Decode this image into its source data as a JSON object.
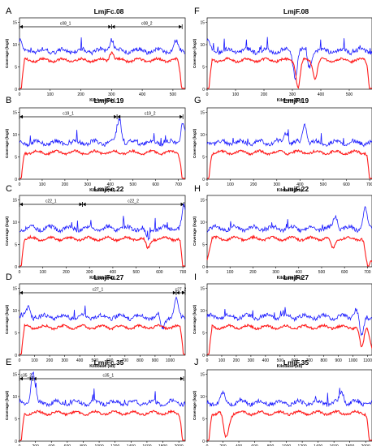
{
  "colors": {
    "coverage_total": "#1a1aff",
    "coverage_unique": "#ff1a1a"
  },
  "chart_data": [
    {
      "type": "line",
      "panel_letter": "A",
      "title": "LmjFc.08",
      "xlabel": "Kilobase (kb)",
      "ylabel": "Coverage (log2)",
      "xlim": [
        0,
        540
      ],
      "xticks": [
        0,
        100,
        200,
        300,
        400,
        500
      ],
      "ylim": [
        0,
        16
      ],
      "yticks": [
        0,
        5,
        10,
        15
      ],
      "contigs": [
        {
          "label": "c08_1",
          "start": 0,
          "end": 300
        },
        {
          "label": "c08_2",
          "start": 300,
          "end": 530
        }
      ],
      "series": [
        {
          "color": "blue",
          "baseline": 8.6,
          "features": [
            {
              "x": 300,
              "y": 11.5
            },
            {
              "x": 510,
              "y": 10.5
            },
            {
              "x": 0,
              "y": 11.0
            }
          ]
        },
        {
          "color": "red",
          "baseline": 6.5,
          "features": [
            {
              "x": 0,
              "y": 1.5
            },
            {
              "x": 300,
              "y": 8.5
            },
            {
              "x": 530,
              "y": 1.5
            }
          ]
        }
      ]
    },
    {
      "type": "line",
      "panel_letter": "F",
      "title": "LmjF.08",
      "xlabel": "Kilobase (kb)",
      "ylabel": "Coverage (log2)",
      "xlim": [
        0,
        580
      ],
      "xticks": [
        0,
        100,
        200,
        300,
        400,
        500
      ],
      "ylim": [
        0,
        16
      ],
      "yticks": [
        0,
        5,
        10,
        15
      ],
      "series": [
        {
          "color": "blue",
          "baseline": 8.6,
          "features": [
            {
              "x": 310,
              "y": 3.0
            },
            {
              "x": 360,
              "y": 5.0
            },
            {
              "x": 0,
              "y": 11.0
            }
          ]
        },
        {
          "color": "red",
          "baseline": 6.5,
          "features": [
            {
              "x": 320,
              "y": 0.5
            },
            {
              "x": 380,
              "y": 2.5
            },
            {
              "x": 0,
              "y": 1.5
            },
            {
              "x": 575,
              "y": 1.5
            }
          ]
        }
      ]
    },
    {
      "type": "line",
      "panel_letter": "B",
      "title": "LmjFc.19",
      "xlabel": "Kilobase (kb)",
      "ylabel": "Coverage (log2)",
      "xlim": [
        0,
        730
      ],
      "xticks": [
        0,
        100,
        200,
        300,
        400,
        500,
        600,
        700
      ],
      "ylim": [
        0,
        16
      ],
      "yticks": [
        0,
        5,
        10,
        15
      ],
      "contigs": [
        {
          "label": "c19_1",
          "start": 0,
          "end": 430
        },
        {
          "label": "c19_2",
          "start": 430,
          "end": 720
        }
      ],
      "series": [
        {
          "color": "blue",
          "baseline": 8.2,
          "features": [
            {
              "x": 440,
              "y": 13.5
            },
            {
              "x": 720,
              "y": 13.0
            }
          ]
        },
        {
          "color": "red",
          "baseline": 6.0,
          "features": [
            {
              "x": 0,
              "y": 1.5
            },
            {
              "x": 720,
              "y": 1.5
            }
          ]
        }
      ]
    },
    {
      "type": "line",
      "panel_letter": "G",
      "title": "LmjF.19",
      "xlabel": "Kilobase (kb)",
      "ylabel": "Coverage (log2)",
      "xlim": [
        0,
        710
      ],
      "xticks": [
        0,
        100,
        200,
        300,
        400,
        500,
        600,
        700
      ],
      "ylim": [
        0,
        16
      ],
      "yticks": [
        0,
        5,
        10,
        15
      ],
      "series": [
        {
          "color": "blue",
          "baseline": 8.2,
          "features": [
            {
              "x": 340,
              "y": 10.5
            },
            {
              "x": 420,
              "y": 12.5
            }
          ]
        },
        {
          "color": "red",
          "baseline": 6.0,
          "features": [
            {
              "x": 0,
              "y": 1.5
            },
            {
              "x": 705,
              "y": 1.5
            }
          ]
        }
      ]
    },
    {
      "type": "line",
      "panel_letter": "C",
      "title": "LmjFc.22",
      "xlabel": "Kilobase (kb)",
      "ylabel": "Coverage (log2)",
      "xlim": [
        0,
        710
      ],
      "xticks": [
        0,
        100,
        200,
        300,
        400,
        500,
        600,
        700
      ],
      "ylim": [
        0,
        16
      ],
      "yticks": [
        0,
        5,
        10,
        15
      ],
      "contigs": [
        {
          "label": "c22_1",
          "start": 0,
          "end": 270
        },
        {
          "label": "c22_2",
          "start": 270,
          "end": 705
        }
      ],
      "series": [
        {
          "color": "blue",
          "baseline": 8.6,
          "features": [
            {
              "x": 550,
              "y": 5.5
            },
            {
              "x": 705,
              "y": 13.5
            }
          ]
        },
        {
          "color": "red",
          "baseline": 6.3,
          "features": [
            {
              "x": 550,
              "y": 4.0
            },
            {
              "x": 0,
              "y": 1.5
            },
            {
              "x": 705,
              "y": 1.5
            }
          ]
        }
      ]
    },
    {
      "type": "line",
      "panel_letter": "H",
      "title": "LmjF.22",
      "xlabel": "Kilobase (kb)",
      "ylabel": "Coverage (log2)",
      "xlim": [
        0,
        720
      ],
      "xticks": [
        0,
        100,
        200,
        300,
        400,
        500,
        600,
        700
      ],
      "ylim": [
        0,
        16
      ],
      "yticks": [
        0,
        5,
        10,
        15
      ],
      "series": [
        {
          "color": "blue",
          "baseline": 8.6,
          "features": [
            {
              "x": 560,
              "y": 11.5
            },
            {
              "x": 690,
              "y": 13.0
            }
          ]
        },
        {
          "color": "red",
          "baseline": 6.3,
          "features": [
            {
              "x": 550,
              "y": 4.0
            },
            {
              "x": 700,
              "y": 0.5
            }
          ]
        }
      ]
    },
    {
      "type": "line",
      "panel_letter": "D",
      "title": "LmjFc.27",
      "xlabel": "Kilobase (kb)",
      "ylabel": "Coverage (log2)",
      "xlim": [
        0,
        1100
      ],
      "xticks": [
        0,
        100,
        200,
        300,
        400,
        500,
        600,
        700,
        800,
        900,
        1000
      ],
      "ylim": [
        0,
        16
      ],
      "yticks": [
        0,
        5,
        10,
        15
      ],
      "contigs": [
        {
          "label": "c27_1",
          "start": 0,
          "end": 1040
        },
        {
          "label": "c27_2",
          "start": 1040,
          "end": 1100
        }
      ],
      "series": [
        {
          "color": "blue",
          "baseline": 8.6,
          "features": [
            {
              "x": 1040,
              "y": 12.5
            },
            {
              "x": 950,
              "y": 6.0
            },
            {
              "x": 60,
              "y": 10.5
            }
          ]
        },
        {
          "color": "red",
          "baseline": 6.3,
          "features": [
            {
              "x": 0,
              "y": 1.5
            },
            {
              "x": 1100,
              "y": 1.5
            }
          ]
        }
      ]
    },
    {
      "type": "line",
      "panel_letter": "I",
      "title": "LmjF.27",
      "xlabel": "Kilobase (kb)",
      "ylabel": "Coverage (log2)",
      "xlim": [
        0,
        1130
      ],
      "xticks": [
        0,
        100,
        200,
        300,
        400,
        500,
        600,
        700,
        800,
        900,
        1000,
        1100
      ],
      "ylim": [
        0,
        16
      ],
      "yticks": [
        0,
        5,
        10,
        15
      ],
      "series": [
        {
          "color": "blue",
          "baseline": 8.6,
          "features": [
            {
              "x": 1020,
              "y": 10.5
            },
            {
              "x": 1060,
              "y": 4.0
            }
          ]
        },
        {
          "color": "red",
          "baseline": 6.3,
          "features": [
            {
              "x": 1060,
              "y": 1.5
            },
            {
              "x": 0,
              "y": 1.5
            }
          ]
        }
      ]
    },
    {
      "type": "line",
      "panel_letter": "E",
      "title": "LmjFc.35",
      "xlabel": "Kilobase (kb)",
      "ylabel": "Coverage (log2)",
      "xlim": [
        0,
        2080
      ],
      "xticks": [
        0,
        200,
        400,
        600,
        800,
        1000,
        1200,
        1400,
        1600,
        1800,
        2000
      ],
      "ylim": [
        0,
        16
      ],
      "yticks": [
        0,
        5,
        10,
        15
      ],
      "contigs": [
        {
          "label": "c35_2",
          "start": 0,
          "end": 170
        },
        {
          "label": "c35_1",
          "start": 170,
          "end": 2060
        }
      ],
      "series": [
        {
          "color": "blue",
          "baseline": 8.6,
          "features": [
            {
              "x": 170,
              "y": 15.5
            }
          ]
        },
        {
          "color": "red",
          "baseline": 6.3,
          "features": [
            {
              "x": 0,
              "y": 1.5
            },
            {
              "x": 2060,
              "y": 1.5
            }
          ]
        }
      ]
    },
    {
      "type": "line",
      "panel_letter": "J",
      "title": "LmjF.35",
      "xlabel": "Kilobase (kb)",
      "ylabel": "Coverage (log2)",
      "xlim": [
        0,
        2080
      ],
      "xticks": [
        0,
        200,
        400,
        600,
        800,
        1000,
        1200,
        1400,
        1600,
        1800,
        2000
      ],
      "ylim": [
        0,
        16
      ],
      "yticks": [
        0,
        5,
        10,
        15
      ],
      "series": [
        {
          "color": "blue",
          "baseline": 8.6,
          "features": [
            {
              "x": 200,
              "y": 10.5
            },
            {
              "x": 1700,
              "y": 11.0
            }
          ]
        },
        {
          "color": "red",
          "baseline": 6.3,
          "features": [
            {
              "x": 230,
              "y": 1.5
            },
            {
              "x": 270,
              "y": 4.0
            },
            {
              "x": 0,
              "y": 1.5
            },
            {
              "x": 2060,
              "y": 1.5
            }
          ]
        }
      ]
    }
  ]
}
